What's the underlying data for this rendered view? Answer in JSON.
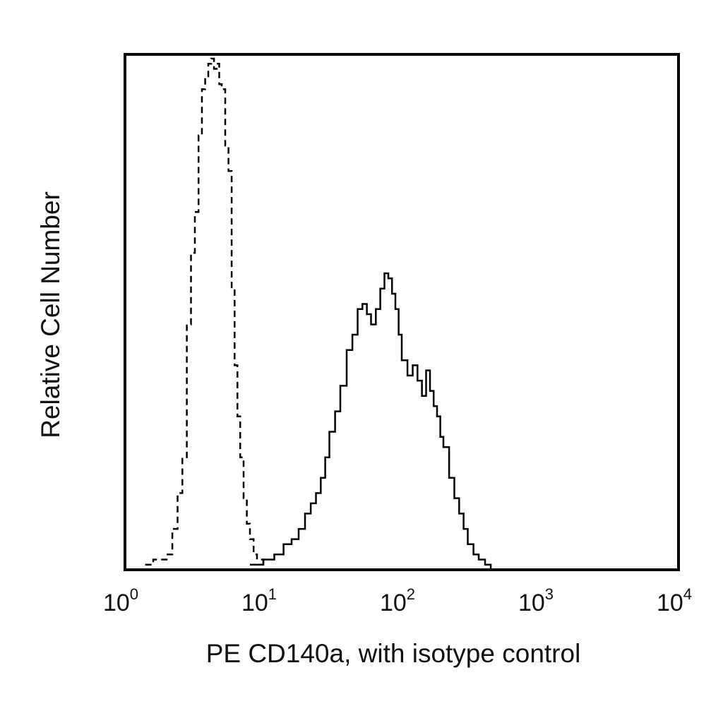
{
  "chart_data": {
    "type": "histogram",
    "title": "",
    "xlabel": "PE CD140a, with isotype control",
    "ylabel": "Relative Cell Number",
    "x_scale": "log",
    "xlim": [
      1,
      10000
    ],
    "ylim": [
      0,
      100
    ],
    "x_ticks": [
      {
        "value": 1,
        "base": "10",
        "exp": "0"
      },
      {
        "value": 10,
        "base": "10",
        "exp": "1"
      },
      {
        "value": 100,
        "base": "10",
        "exp": "2"
      },
      {
        "value": 1000,
        "base": "10",
        "exp": "3"
      },
      {
        "value": 10000,
        "base": "10",
        "exp": "4"
      }
    ],
    "grid": false,
    "legend": "none",
    "colors": {
      "line": "#000000",
      "frame": "#000000"
    },
    "series": [
      {
        "style": "dashed",
        "x": [
          1.4,
          1.6,
          1.8,
          2.0,
          2.2,
          2.4,
          2.6,
          2.8,
          3.0,
          3.2,
          3.4,
          3.6,
          3.8,
          4.0,
          4.2,
          4.4,
          4.6,
          4.8,
          5.0,
          5.3,
          5.6,
          5.9,
          6.2,
          6.5,
          6.8,
          7.2,
          7.6,
          8.0,
          8.5,
          9.0,
          10.0
        ],
        "y": [
          1,
          2,
          2,
          3,
          8,
          15,
          22,
          48,
          62,
          70,
          85,
          94,
          96,
          99,
          100,
          98,
          99,
          95,
          94,
          83,
          78,
          55,
          40,
          30,
          22,
          14,
          9,
          6,
          3,
          2,
          1
        ]
      },
      {
        "style": "solid",
        "x": [
          8,
          10,
          12,
          14,
          16,
          18,
          20,
          22,
          24,
          26,
          28,
          30,
          33,
          36,
          40,
          44,
          48,
          52,
          56,
          60,
          65,
          70,
          75,
          80,
          85,
          90,
          95,
          100,
          110,
          120,
          130,
          140,
          150,
          160,
          170,
          180,
          190,
          200,
          220,
          240,
          260,
          280,
          300,
          330,
          360,
          400,
          440
        ],
        "y": [
          1,
          2,
          3,
          5,
          6,
          8,
          11,
          13,
          15,
          18,
          22,
          27,
          31,
          36,
          43,
          46,
          51,
          52,
          50,
          48,
          51,
          55,
          58,
          57,
          54,
          51,
          46,
          41,
          38,
          40,
          37,
          34,
          39,
          35,
          32,
          30,
          26,
          24,
          18,
          14,
          11,
          8,
          5,
          3,
          2,
          1,
          0
        ]
      }
    ]
  }
}
